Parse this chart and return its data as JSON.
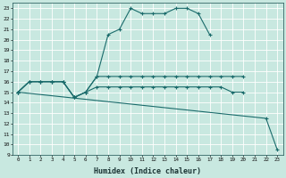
{
  "xlabel": "Humidex (Indice chaleur)",
  "bg_color": "#c8e8e0",
  "grid_color": "#a8d0cc",
  "line_color": "#1a6b6b",
  "xlim": [
    -0.5,
    23.5
  ],
  "ylim": [
    9,
    23.5
  ],
  "xticks": [
    0,
    1,
    2,
    3,
    4,
    5,
    6,
    7,
    8,
    9,
    10,
    11,
    12,
    13,
    14,
    15,
    16,
    17,
    18,
    19,
    20,
    21,
    22,
    23
  ],
  "yticks": [
    9,
    10,
    11,
    12,
    13,
    14,
    15,
    16,
    17,
    18,
    19,
    20,
    21,
    22,
    23
  ],
  "curves": [
    {
      "x": [
        0,
        1,
        2,
        3,
        4,
        5,
        6,
        7,
        8,
        9,
        10,
        11,
        12,
        13,
        14,
        15,
        16,
        17
      ],
      "y": [
        15,
        16,
        16,
        16,
        16,
        14.5,
        15,
        16.5,
        20.5,
        21.0,
        23.0,
        22.5,
        22.5,
        22.5,
        23.0,
        23.0,
        22.5,
        20.5
      ]
    },
    {
      "x": [
        0,
        1,
        2,
        3,
        4,
        5,
        6,
        7,
        8,
        9,
        10,
        11,
        12,
        13,
        14,
        15,
        16,
        17,
        18,
        19,
        20
      ],
      "y": [
        15,
        16,
        16,
        16,
        16,
        14.5,
        15,
        16.5,
        16.5,
        16.5,
        16.5,
        16.5,
        16.5,
        16.5,
        16.5,
        16.5,
        16.5,
        16.5,
        16.5,
        16.5,
        16.5
      ]
    },
    {
      "x": [
        0,
        1,
        2,
        3,
        4,
        5,
        6,
        7,
        8,
        9,
        10,
        11,
        12,
        13,
        14,
        15,
        16,
        17,
        18,
        19,
        20
      ],
      "y": [
        15,
        16,
        16,
        16,
        16,
        14.5,
        15.0,
        15.5,
        15.5,
        15.5,
        15.5,
        15.5,
        15.5,
        15.5,
        15.5,
        15.5,
        15.5,
        15.5,
        15.5,
        15.0,
        15.0
      ]
    },
    {
      "x": [
        0,
        22,
        23
      ],
      "y": [
        15,
        12.5,
        9.5
      ]
    }
  ]
}
